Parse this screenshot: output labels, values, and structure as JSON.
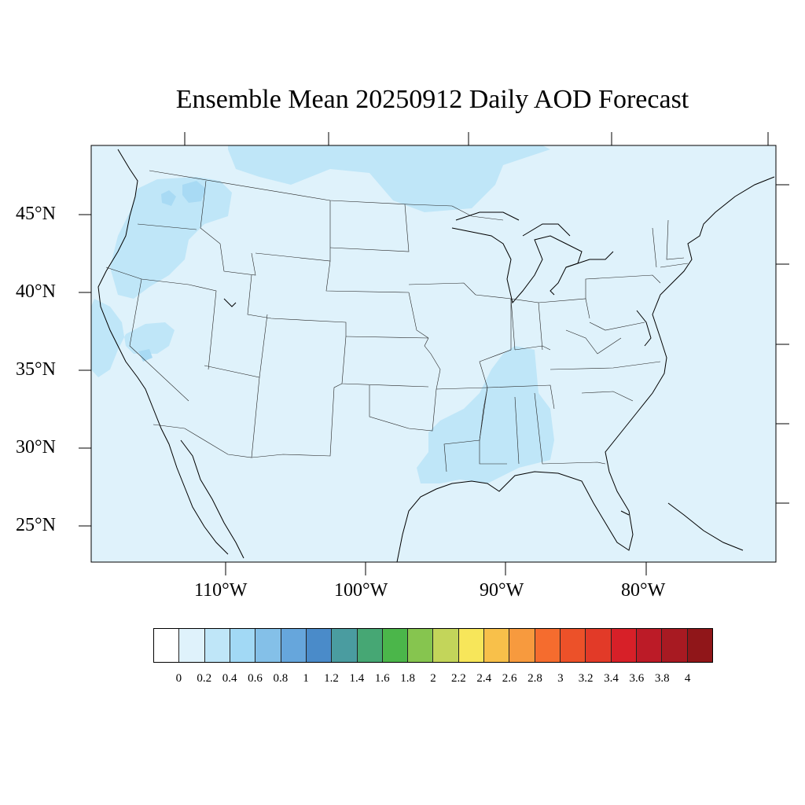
{
  "title": "Ensemble Mean 20250912 Daily AOD Forecast",
  "map": {
    "background_color": "#dff2fb",
    "plume_color": "#bfe6f8",
    "plume_dark_color": "#a8daf4",
    "lat_labels": [
      "45°N",
      "40°N",
      "35°N",
      "30°N",
      "25°N"
    ],
    "lon_labels": [
      "110°W",
      "100°W",
      "90°W",
      "80°W"
    ]
  },
  "colorbar": {
    "labels": [
      "0",
      "0.2",
      "0.4",
      "0.6",
      "0.8",
      "1",
      "1.2",
      "1.4",
      "1.6",
      "1.8",
      "2",
      "2.2",
      "2.4",
      "2.6",
      "2.8",
      "3",
      "3.2",
      "3.4",
      "3.6",
      "3.8",
      "4"
    ],
    "colors": [
      "#ffffff",
      "#dff2fb",
      "#bfe6f8",
      "#a2d9f5",
      "#84c0e8",
      "#66a6dc",
      "#4a8bc9",
      "#4a9ca0",
      "#46a774",
      "#4bb64a",
      "#86c54f",
      "#c3d55a",
      "#f7e65a",
      "#f8c04a",
      "#f79a3e",
      "#f56c2e",
      "#ec5129",
      "#e23a28",
      "#d72028",
      "#bc1b27",
      "#a81a22",
      "#901619"
    ]
  }
}
